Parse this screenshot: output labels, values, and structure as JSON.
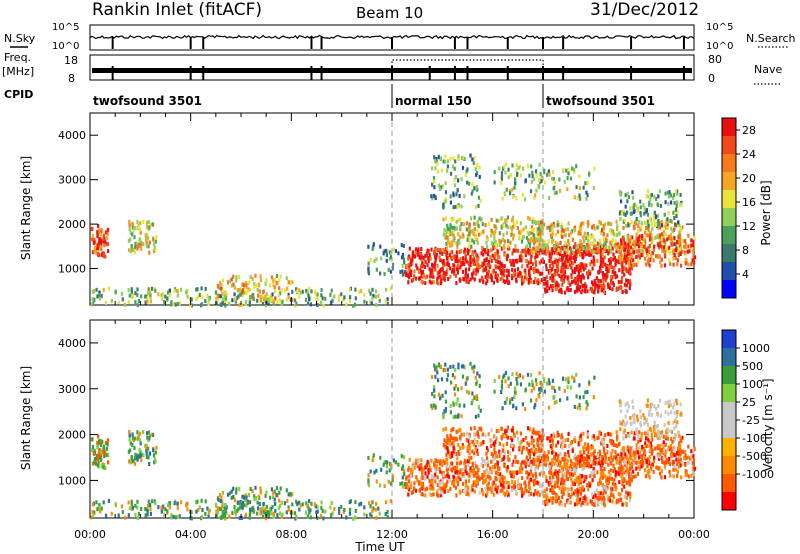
{
  "header": {
    "title": "Rankin Inlet (fitACF)",
    "beam": "Beam 10",
    "date": "31/Dec/2012"
  },
  "top_panels": {
    "nsky_label": "N.Sky",
    "nsky_ticks": [
      "10^5",
      "10^0"
    ],
    "nsky_right_ticks": [
      "10^5",
      "10^0"
    ],
    "nsearch_label": "N.Search",
    "freq_label": "Freq.",
    "freq_unit": "[MHz]",
    "freq_ticks": [
      "18",
      "8"
    ],
    "nave_ticks": [
      "80",
      "0"
    ],
    "nave_label": "Nave",
    "cpid_label": "CPID",
    "cpid_segments": [
      {
        "name": "twofsound 3501",
        "start_hour": 0,
        "end_hour": 12
      },
      {
        "name": "normal 150",
        "start_hour": 12,
        "end_hour": 18
      },
      {
        "name": "twofsound 3501",
        "start_hour": 18,
        "end_hour": 24
      }
    ]
  },
  "colors": {
    "power_scale": [
      "#0000ff",
      "#1f4fa8",
      "#3b7a6b",
      "#4aa25a",
      "#8fd05a",
      "#e8e23a",
      "#f5a623",
      "#f57a1e",
      "#f04a1a",
      "#e81010"
    ],
    "velocity_scale": [
      "#ff0000",
      "#ff5a00",
      "#ff8c00",
      "#ffb000",
      "#c8c8c8",
      "#c8c8c8",
      "#7fd040",
      "#3a9e3a",
      "#2e6fa0",
      "#1e3fcf"
    ]
  },
  "chart_data": [
    {
      "type": "heatmap",
      "title": "",
      "xlabel": "Time UT",
      "ylabel": "Slant Range [km]",
      "x_ticks": [
        "00:00",
        "04:00",
        "08:00",
        "12:00",
        "16:00",
        "20:00",
        "00:00"
      ],
      "y_ticks": [
        "1000",
        "2000",
        "3000",
        "4000"
      ],
      "xlim_hours": [
        0,
        24
      ],
      "ylim_km": [
        180,
        4500
      ],
      "colorbar": {
        "label": "Power [dB]",
        "ticks": [
          "4",
          "8",
          "12",
          "16",
          "20",
          "24",
          "28"
        ],
        "range": [
          0,
          30
        ]
      },
      "grid": "dashed vertical lines at 12:00 and 18:00"
    },
    {
      "type": "heatmap",
      "title": "",
      "xlabel": "Time UT",
      "ylabel": "Slant Range [km]",
      "x_ticks": [
        "00:00",
        "04:00",
        "08:00",
        "12:00",
        "16:00",
        "20:00",
        "00:00"
      ],
      "y_ticks": [
        "1000",
        "2000",
        "3000",
        "4000"
      ],
      "xlim_hours": [
        0,
        24
      ],
      "ylim_km": [
        180,
        4500
      ],
      "colorbar": {
        "label": "Velocity [m s⁻¹]",
        "ticks": [
          "1000",
          "500",
          "100",
          "25",
          "-25",
          "-100",
          "-500",
          "-1000"
        ]
      },
      "grid": "dashed vertical lines at 12:00 and 18:00"
    }
  ]
}
